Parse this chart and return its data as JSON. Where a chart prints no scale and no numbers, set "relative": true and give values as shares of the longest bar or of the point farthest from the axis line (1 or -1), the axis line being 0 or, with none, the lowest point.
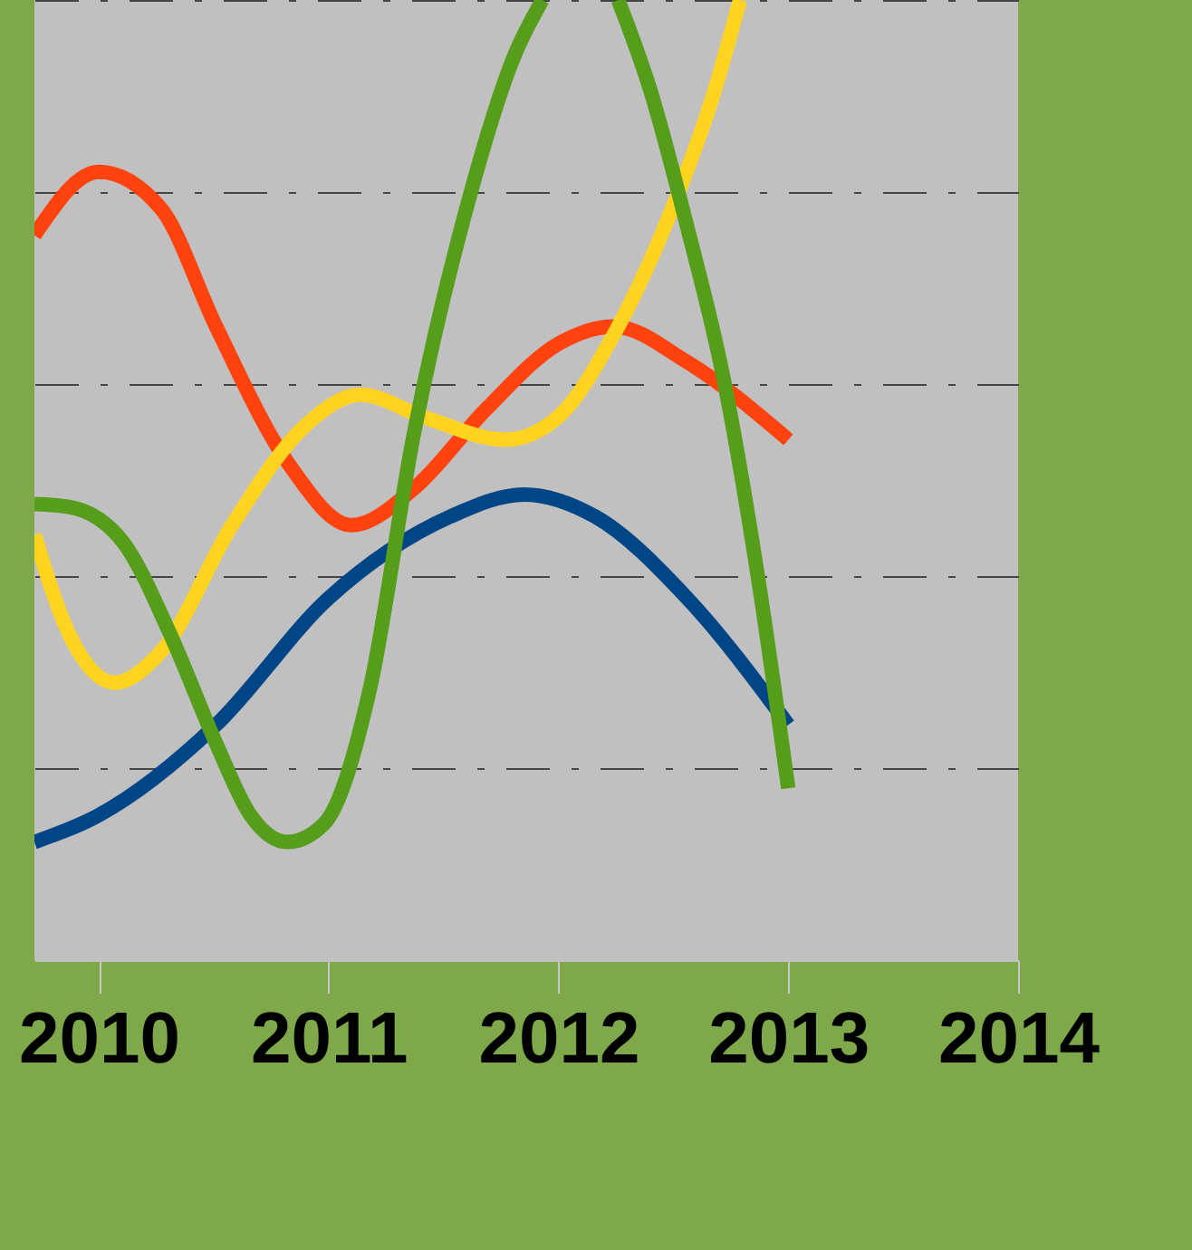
{
  "chart_data": {
    "type": "line",
    "relative": true,
    "xlim": [
      2009.72,
      2014
    ],
    "xticks": [
      2010,
      2011,
      2012,
      2013,
      2014
    ],
    "grid": "y",
    "legend": false,
    "line_style": "solid",
    "marker": "none",
    "series": [
      {
        "color": "#004586",
        "x": [
          2009.72,
          2010,
          2010.51,
          2011,
          2011.53,
          2011.85,
          2012.16,
          2012.56,
          2013
        ],
        "values": [
          0.123,
          0.151,
          0.245,
          0.377,
          0.462,
          0.485,
          0.462,
          0.377,
          0.245
        ]
      },
      {
        "color": "#ff420e",
        "x": [
          2009.72,
          2010,
          2010.27,
          2010.51,
          2010.82,
          2011.1,
          2011.37,
          2011.69,
          2012,
          2012.24,
          2012.56,
          2013
        ],
        "values": [
          0.755,
          0.821,
          0.783,
          0.66,
          0.519,
          0.453,
          0.491,
          0.575,
          0.642,
          0.66,
          0.623,
          0.542
        ]
      },
      {
        "color": "#ffd320",
        "x": [
          2009.72,
          2009.87,
          2010.07,
          2010.27,
          2010.58,
          2010.9,
          2011.14,
          2011.41,
          2011.77,
          2012,
          2012.24,
          2012.48,
          2012.68,
          2012.79
        ],
        "values": [
          0.443,
          0.34,
          0.289,
          0.321,
          0.453,
          0.557,
          0.589,
          0.566,
          0.542,
          0.566,
          0.651,
          0.774,
          0.906,
          1
        ]
      },
      {
        "color": "#579d1c",
        "x": [
          2009.72,
          2009.87,
          2010.11,
          2010.31,
          2010.51,
          2010.66,
          2010.82,
          2010.98,
          2011.18,
          2011.37,
          2011.61,
          2011.81,
          2011.93,
          2012.1,
          2012.26,
          2012.4,
          2012.56,
          2012.72,
          2012.87,
          2013
        ],
        "values": [
          0.475,
          0.472,
          0.434,
          0.34,
          0.226,
          0.151,
          0.123,
          0.142,
          0.283,
          0.547,
          0.792,
          0.943,
          1,
          null,
          1,
          0.906,
          0.764,
          0.604,
          0.396,
          0.179
        ]
      }
    ]
  }
}
